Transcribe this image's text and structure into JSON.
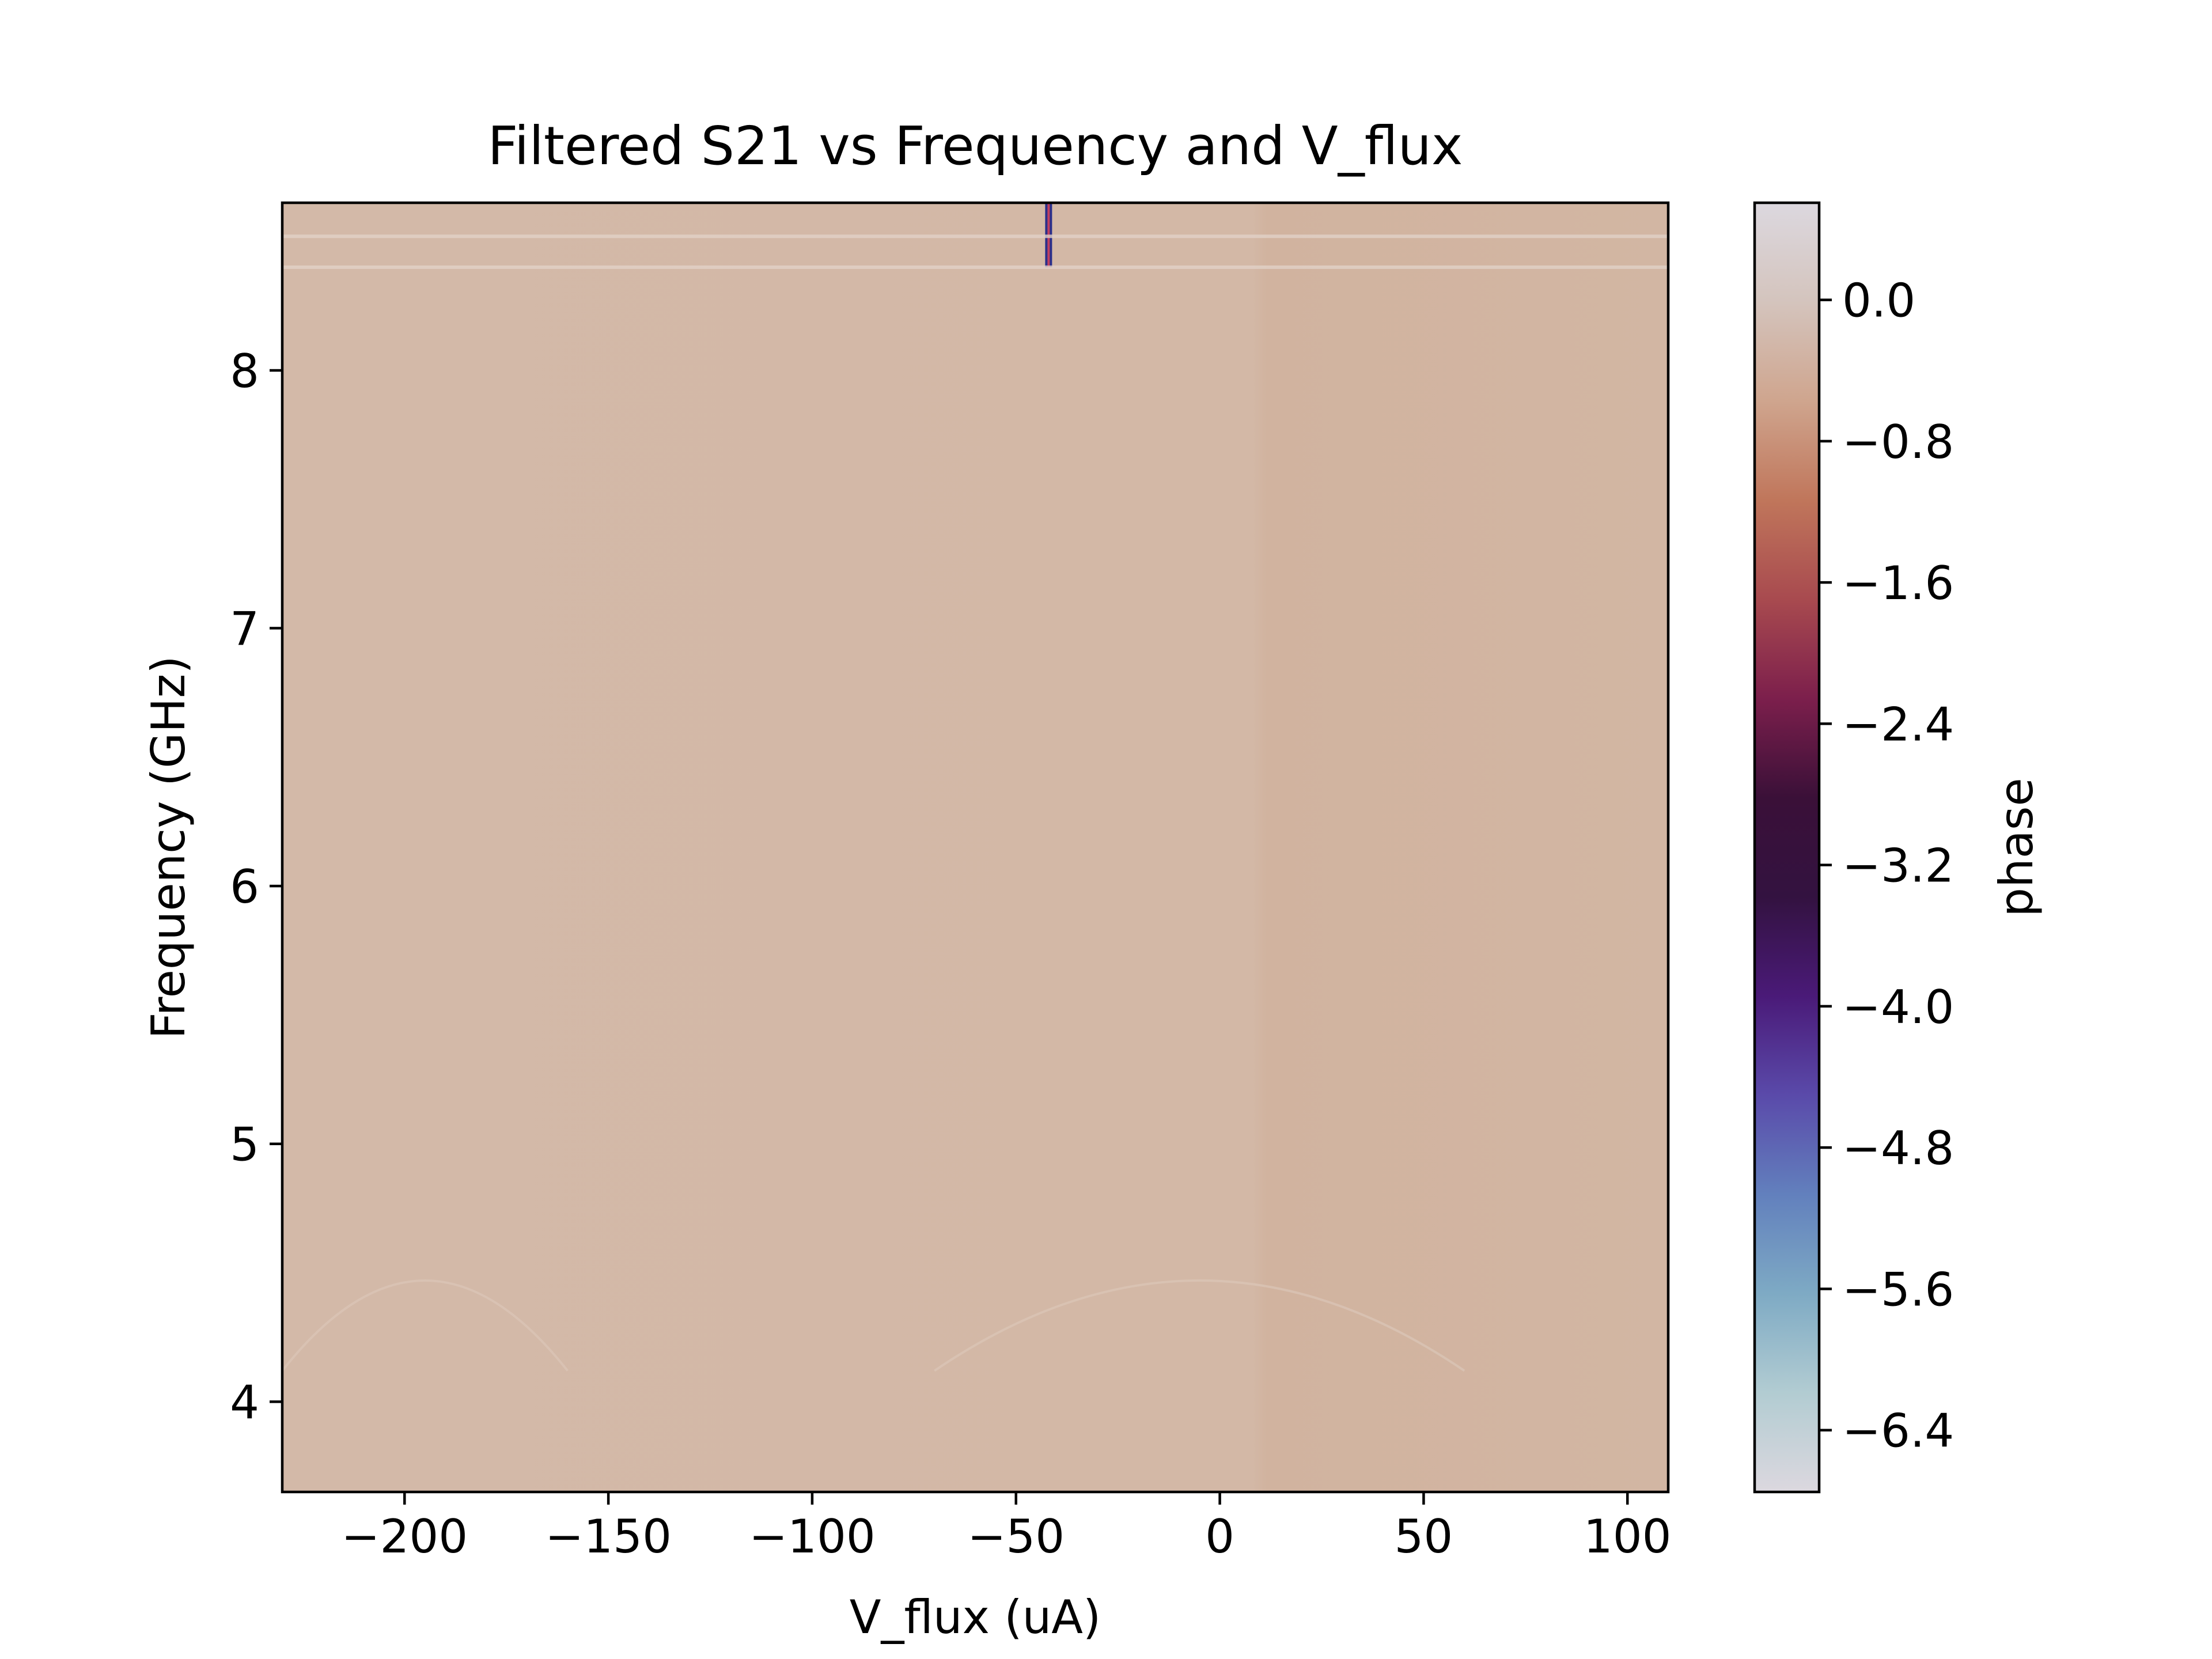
{
  "chart_data": {
    "type": "heatmap",
    "title": "Filtered S21 vs Frequency and V_flux",
    "xlabel": "V_flux (uA)",
    "ylabel": "Frequency (GHz)",
    "xlim": [
      -230,
      110
    ],
    "ylim": [
      3.65,
      8.65
    ],
    "x_ticks": [
      -200,
      -150,
      -100,
      -50,
      0,
      50,
      100
    ],
    "x_tick_labels": [
      "−200",
      "−150",
      "−100",
      "−50",
      "0",
      "50",
      "100"
    ],
    "y_ticks": [
      4,
      5,
      6,
      7,
      8
    ],
    "y_tick_labels": [
      "4",
      "5",
      "6",
      "7",
      "8"
    ],
    "colormap": "twilight",
    "background_value": -0.25,
    "colorbar": {
      "label": "phase",
      "vmin": -6.75,
      "vmax": 0.55,
      "ticks": [
        0.0,
        -0.8,
        -1.6,
        -2.4,
        -3.2,
        -4.0,
        -4.8,
        -5.6,
        -6.4
      ],
      "tick_labels": [
        "0.0",
        "−0.8",
        "−1.6",
        "−2.4",
        "−3.2",
        "−4.0",
        "−4.8",
        "−5.6",
        "−6.4"
      ],
      "colors": [
        "#dcd8df",
        "#d4c4bd",
        "#cfa58e",
        "#c0765b",
        "#a84a4f",
        "#7c1f4c",
        "#3a1038",
        "#331240",
        "#4a1a78",
        "#5a4aaa",
        "#6280bd",
        "#7eaac4",
        "#b2ccd2",
        "#dcd8df"
      ]
    },
    "features": [
      {
        "type": "vertical_line",
        "x": -42,
        "y_range": [
          8.4,
          8.65
        ],
        "value": -5.0
      },
      {
        "type": "horizontal_band",
        "y": 8.4,
        "value": 0.4
      },
      {
        "type": "horizontal_band",
        "y": 8.52,
        "value": 0.3
      },
      {
        "type": "arc",
        "x_range": [
          -70,
          60
        ],
        "y_peak": 4.47,
        "value": 0.1
      },
      {
        "type": "arc",
        "x_range": [
          -230,
          -160
        ],
        "y_peak": 4.47,
        "value": 0.1
      }
    ]
  }
}
